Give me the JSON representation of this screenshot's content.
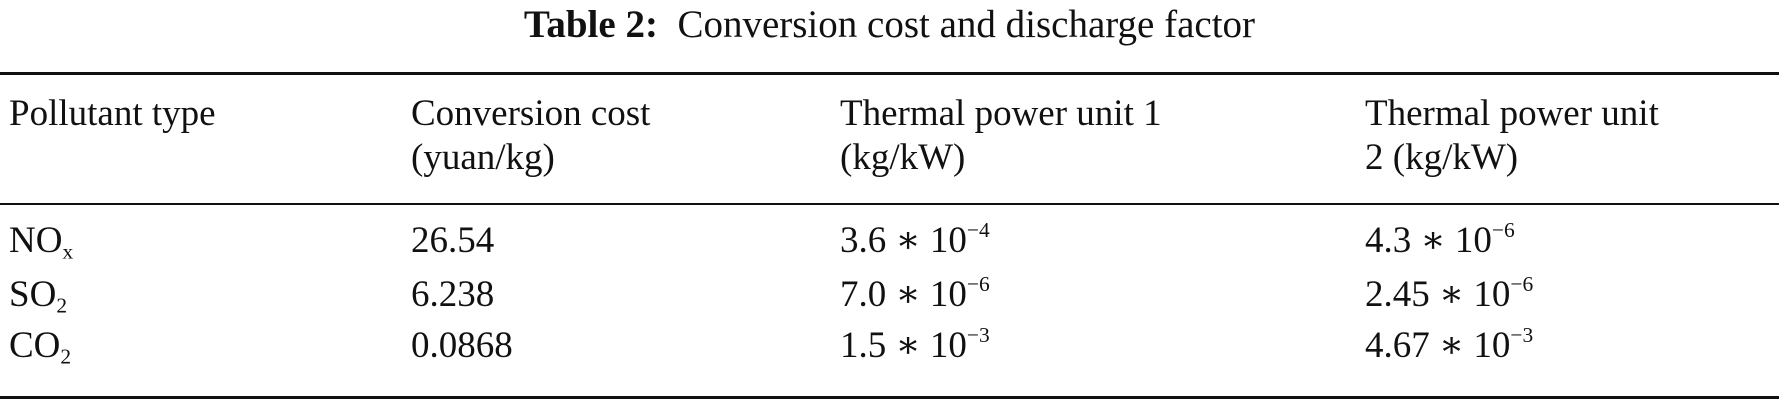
{
  "caption": {
    "label": "Table 2:",
    "text": "Conversion cost and discharge factor"
  },
  "headers": [
    {
      "line1": "Pollutant type",
      "line2": ""
    },
    {
      "line1": "Conversion cost",
      "line2": "(yuan/kg)"
    },
    {
      "line1": "Thermal power unit 1",
      "line2": "(kg/kW)"
    },
    {
      "line1": "Thermal power unit",
      "line2": "2 (kg/kW)"
    }
  ],
  "rows": [
    {
      "pollutant": {
        "base": "NO",
        "sub": "x"
      },
      "cost": "26.54",
      "unit1": {
        "mantissa": "3.6 ∗ 10",
        "exp": "−4"
      },
      "unit2": {
        "mantissa": "4.3 ∗ 10",
        "exp": "−6"
      }
    },
    {
      "pollutant": {
        "base": "SO",
        "sub": "2"
      },
      "cost": "6.238",
      "unit1": {
        "mantissa": "7.0 ∗ 10",
        "exp": "−6"
      },
      "unit2": {
        "mantissa": "2.45 ∗ 10",
        "exp": "−6"
      }
    },
    {
      "pollutant": {
        "base": "CO",
        "sub": "2"
      },
      "cost": "0.0868",
      "unit1": {
        "mantissa": "1.5 ∗ 10",
        "exp": "−3"
      },
      "unit2": {
        "mantissa": "4.67 ∗ 10",
        "exp": "−3"
      }
    }
  ]
}
